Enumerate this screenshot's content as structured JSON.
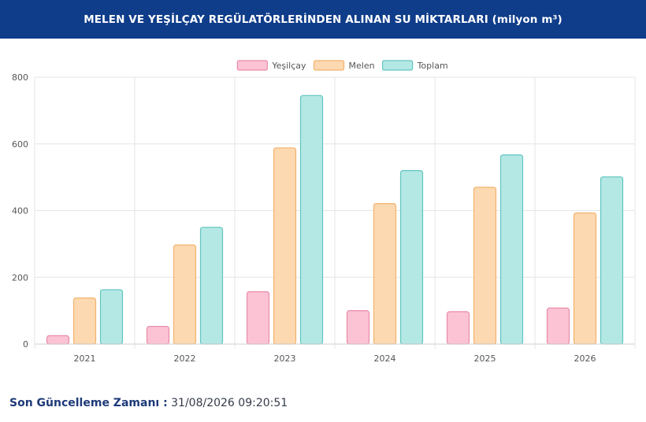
{
  "header": {
    "title": "MELEN VE YEŞİLÇAY REGÜLATÖRLERİNDEN ALINAN SU MİKTARLARI (milyon m³)"
  },
  "footer": {
    "label": "Son Güncelleme Zamanı :",
    "value": "31/08/2026 09:20:51"
  },
  "chart_data": {
    "type": "bar",
    "title": "MELEN VE YEŞİLÇAY REGÜLATÖRLERİNDEN ALINAN SU MİKTARLARI (milyon m³)",
    "categories": [
      "2021",
      "2022",
      "2023",
      "2024",
      "2025",
      "2026"
    ],
    "series": [
      {
        "name": "Yeşilçay",
        "values": [
          25,
          53,
          157,
          100,
          97,
          108
        ],
        "fill": "#fbc3d4",
        "stroke": "#e98ba8"
      },
      {
        "name": "Melen",
        "values": [
          138,
          297,
          588,
          421,
          470,
          393
        ],
        "fill": "#fdd9b1",
        "stroke": "#f2b26c"
      },
      {
        "name": "Toplam",
        "values": [
          163,
          350,
          745,
          520,
          567,
          501
        ],
        "fill": "#b4e8e4",
        "stroke": "#62c5c0"
      }
    ],
    "ylim": [
      0,
      800
    ],
    "yticks": [
      "0",
      "200",
      "400",
      "600",
      "800"
    ],
    "grid": true,
    "legend": "top-center",
    "xlabel": "",
    "ylabel": ""
  }
}
